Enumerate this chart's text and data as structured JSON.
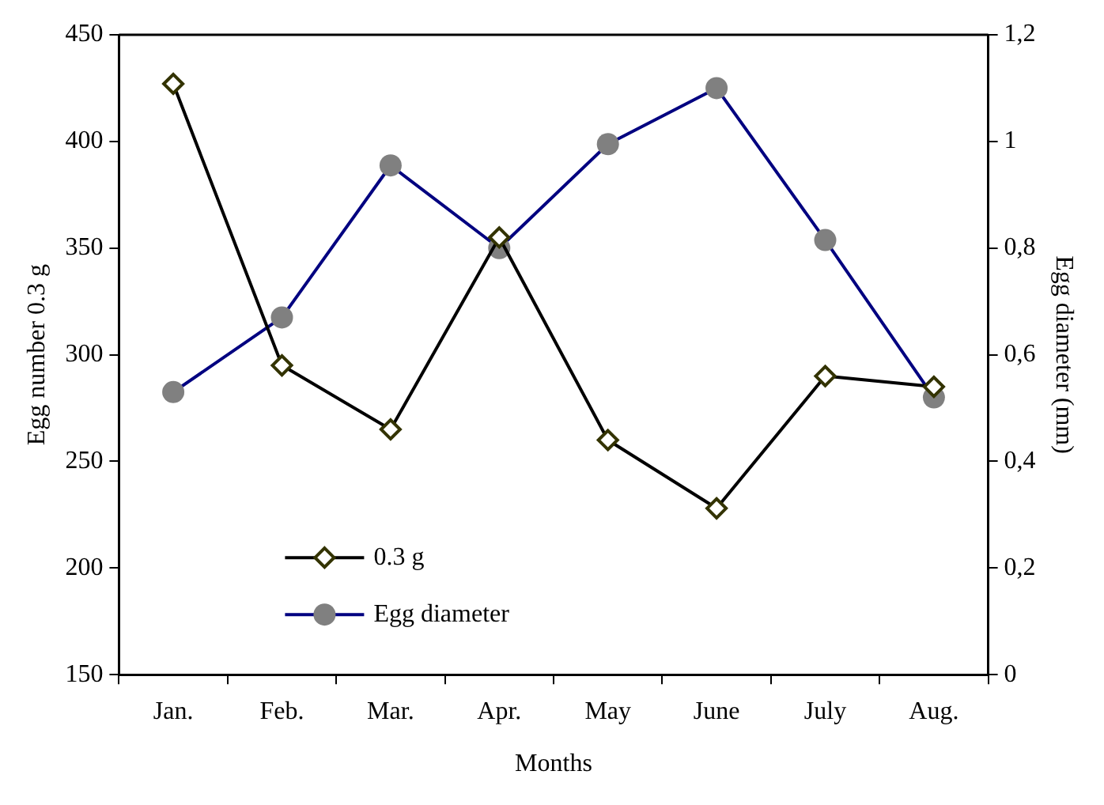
{
  "chart_data": {
    "type": "line",
    "xlabel": "Months",
    "ylabel": "Egg number 0.3 g",
    "y2label": "Egg diameter (mm)",
    "categories": [
      "Jan.",
      "Feb.",
      "Mar.",
      "Apr.",
      "May",
      "June",
      "July",
      "Aug."
    ],
    "series": [
      {
        "name": "0.3 g",
        "color": "#000000",
        "marker": "diamond",
        "values": [
          427,
          295,
          265,
          355,
          260,
          228,
          290,
          285
        ]
      },
      {
        "name": "Egg diameter",
        "color": "#000080",
        "marker": "circle",
        "axis": "y2",
        "values": [
          0.53,
          0.67,
          0.955,
          0.8,
          0.995,
          1.1,
          0.815,
          0.52
        ]
      }
    ],
    "ylim": [
      150,
      450
    ],
    "yticks": [
      150,
      200,
      250,
      300,
      350,
      400,
      450
    ],
    "y2lim": [
      0,
      1.2
    ],
    "y2ticks": [
      0,
      {
        "value": 0.2,
        "label": "0,2"
      },
      {
        "value": 0.4,
        "label": "0,4"
      },
      {
        "value": 0.6,
        "label": "0,6"
      },
      {
        "value": 0.8,
        "label": "0,8"
      },
      1,
      {
        "value": 1.2,
        "label": "1,2"
      }
    ],
    "grid": false,
    "legend": "bottom left"
  }
}
